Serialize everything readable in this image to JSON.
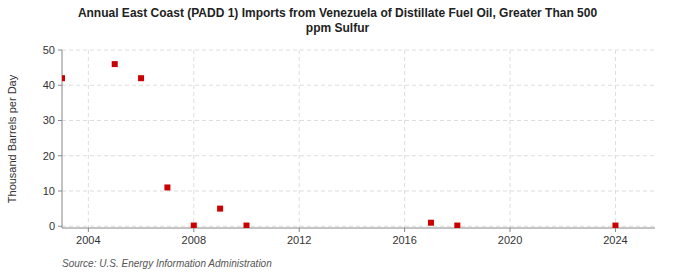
{
  "chart_data": {
    "type": "scatter",
    "title": "Annual East Coast (PADD 1) Imports from Venezuela of Distillate Fuel Oil, Greater Than 500\nppm Sulfur",
    "y_label": "Thousand Barrels per Day",
    "source": "Source: U.S. Energy Information Administration",
    "x": [
      2003,
      2005,
      2006,
      2007,
      2008,
      2009,
      2010,
      2017,
      2018,
      2024
    ],
    "values": [
      42,
      46,
      42,
      11,
      0.2,
      5,
      0.2,
      1,
      0.2,
      0.2
    ],
    "color": "#cc0000",
    "marker": "square",
    "xlim": [
      2003,
      2025.5
    ],
    "ylim": [
      -0.5,
      50
    ],
    "xticks": [
      2004,
      2008,
      2012,
      2016,
      2020,
      2024
    ],
    "yticks": [
      0,
      10,
      20,
      30,
      40,
      50
    ],
    "grid": true
  }
}
